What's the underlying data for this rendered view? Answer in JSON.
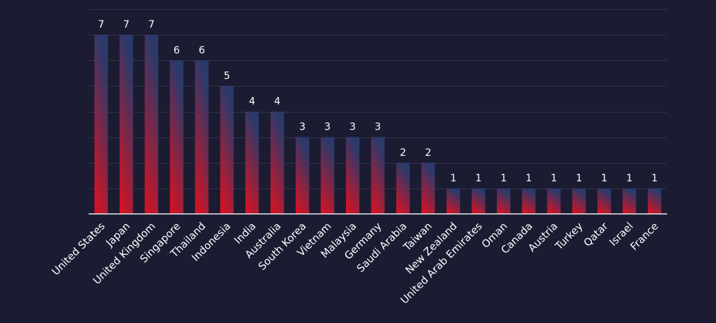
{
  "chart_data": {
    "type": "bar",
    "categories": [
      "United States",
      "Japan",
      "United Kingdom",
      "Singapore",
      "Thailand",
      "Indonesia",
      "India",
      "Australia",
      "South Korea",
      "Vietnam",
      "Malaysia",
      "Germany",
      "Saudi Arabia",
      "Taiwan",
      "New Zealand",
      "United Arab Emirates",
      "Oman",
      "Canada",
      "Austria",
      "Turkey",
      "Qatar",
      "Israel",
      "France"
    ],
    "values": [
      7,
      7,
      7,
      6,
      6,
      5,
      4,
      4,
      3,
      3,
      3,
      3,
      2,
      2,
      1,
      1,
      1,
      1,
      1,
      1,
      1,
      1,
      1
    ],
    "ylim": [
      0,
      8
    ],
    "grid": true,
    "legend": "none",
    "colors": {
      "bar_top": "#2b3a6b",
      "bar_bottom": "#e0101e",
      "background": "#1b1c31",
      "gridline": "#2f3150",
      "axis": "#e9e9ef",
      "text": "#ffffff"
    }
  }
}
